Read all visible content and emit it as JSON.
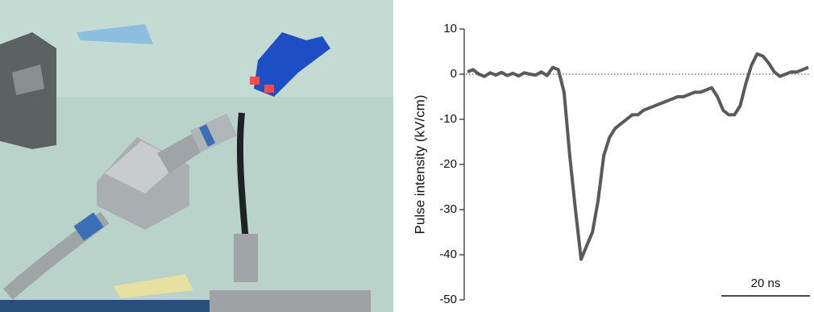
{
  "chart_data": {
    "type": "line",
    "y_label": "Pulse intensity (kV/cm)",
    "scale_bar": "20 ns",
    "color": "#5a5a5a",
    "zero_line": true,
    "ylim": [
      -50,
      10
    ],
    "yticks": [
      10,
      0,
      -10,
      -20,
      -30,
      -40,
      -50
    ],
    "values": [
      0.5,
      1,
      0,
      -0.5,
      0.3,
      -0.2,
      0.4,
      -0.3,
      0.2,
      -0.4,
      0.3,
      0,
      -0.2,
      0.5,
      -0.3,
      1.5,
      1,
      -4,
      -18,
      -30,
      -41,
      -38,
      -35,
      -28,
      -18,
      -14,
      -12,
      -11,
      -10,
      -9,
      -9,
      -8,
      -7.5,
      -7,
      -6.5,
      -6,
      -5.5,
      -5,
      -5,
      -4.5,
      -4,
      -4,
      -3.5,
      -3,
      -5,
      -8,
      -9,
      -9,
      -7,
      -2,
      2,
      4.5,
      4,
      2.5,
      0.5,
      -0.5,
      0,
      0.5,
      0.5,
      1,
      1.5
    ]
  }
}
